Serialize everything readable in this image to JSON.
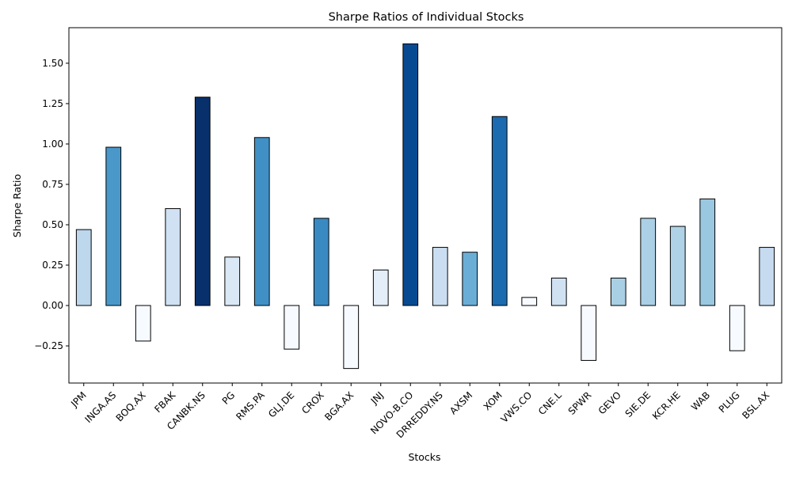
{
  "chart_data": {
    "type": "bar",
    "title": "Sharpe Ratios of Individual Stocks",
    "xlabel": "Stocks",
    "ylabel": "Sharpe Ratio",
    "ylim": [
      -0.48,
      1.72
    ],
    "yticks": [
      -0.25,
      0.0,
      0.25,
      0.5,
      0.75,
      1.0,
      1.25,
      1.5
    ],
    "ytick_labels": [
      "−0.25",
      "0.00",
      "0.25",
      "0.50",
      "0.75",
      "1.00",
      "1.25",
      "1.50"
    ],
    "grid": false,
    "legend": "none",
    "categories": [
      "JPM",
      "INGA.AS",
      "BOQ.AX",
      "FBAK",
      "CANBK.NS",
      "PG",
      "RMS.PA",
      "GLJ.DE",
      "CROX",
      "BGA.AX",
      "JNJ",
      "NOVO-B.CO",
      "DRREDDY.NS",
      "AXSM",
      "XOM",
      "VWS.CO",
      "CNE.L",
      "SPWR",
      "GEVO",
      "SIE.DE",
      "KCR.HE",
      "WAB",
      "PLUG",
      "BSL.AX"
    ],
    "values": [
      0.47,
      0.98,
      -0.22,
      0.6,
      1.29,
      0.3,
      1.04,
      -0.27,
      0.54,
      -0.39,
      0.22,
      1.62,
      0.36,
      0.33,
      1.17,
      0.05,
      0.17,
      -0.34,
      0.17,
      0.54,
      0.49,
      0.66,
      -0.28,
      0.36
    ],
    "colors": [
      "#bdd7ec",
      "#4a98c9",
      "#f7fbff",
      "#cfe1f2",
      "#08306b",
      "#dae8f6",
      "#4090c5",
      "#f7fbff",
      "#3a8ac2",
      "#f7fbff",
      "#e3eef9",
      "#084a91",
      "#cbdef1",
      "#6aaed6",
      "#1c6aaf",
      "#f7fbff",
      "#d0e1f2",
      "#f7fbff",
      "#a9cfe5",
      "#abd0e6",
      "#b0d2e7",
      "#9ac8e0",
      "#f7fbff",
      "#c6dbef"
    ],
    "bar_edge_color": "#000000"
  }
}
